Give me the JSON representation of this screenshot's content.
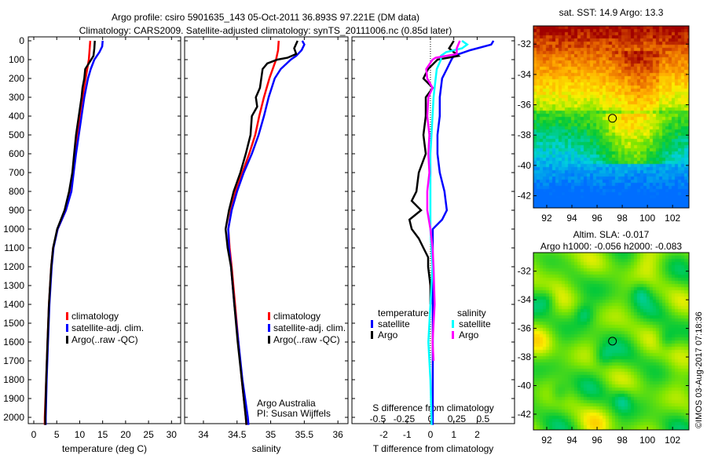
{
  "title": {
    "line1": "Argo profile: csiro 5901635_143 05-Oct-2011 36.893S 97.221E (DM data)",
    "line2": "Climatology: CARS2009. Satellite-adjusted climatology: synTS_20111006.nc (0.85d later)"
  },
  "colors": {
    "climatology": "#ff0000",
    "satellite": "#0000ff",
    "argo": "#000000",
    "sal_satellite": "#00ffff",
    "sal_argo": "#ff00ff"
  },
  "credit": "©IMOS 03-Aug-2017 07:18:36",
  "chart_data": [
    {
      "type": "line",
      "name": "temperature",
      "xlabel": "temperature (deg C)",
      "xlim": [
        -1.2,
        32
      ],
      "ylim": [
        2040,
        0
      ],
      "xticks": [
        "0",
        "5",
        "10",
        "15",
        "20",
        "25",
        "30"
      ],
      "xtick_values": [
        0,
        5,
        10,
        15,
        20,
        25,
        30
      ],
      "yticks": [
        "0",
        "100",
        "200",
        "300",
        "400",
        "500",
        "600",
        "700",
        "800",
        "900",
        "1000",
        "1100",
        "1200",
        "1300",
        "1400",
        "1500",
        "1600",
        "1700",
        "1800",
        "1900",
        "2000"
      ],
      "legend": [
        "climatology",
        "satellite-adj. clim.",
        "Argo(..raw -QC)"
      ],
      "series": [
        {
          "name": "climatology",
          "color": "#ff0000",
          "p": [
            0,
            100,
            200,
            300,
            400,
            500,
            600,
            700,
            800,
            900,
            1000,
            1100,
            1200,
            1400,
            1600,
            1800,
            2000,
            2040
          ],
          "v": [
            12.3,
            12,
            11.3,
            10.6,
            10,
            9.5,
            9,
            8.6,
            8.1,
            7,
            5.2,
            4.2,
            3.8,
            3.3,
            3,
            2.7,
            2.4,
            2.4
          ]
        },
        {
          "name": "satellite-adj. clim.",
          "color": "#0000ff",
          "p": [
            0,
            30,
            60,
            100,
            150,
            200,
            300,
            400,
            500,
            600,
            700,
            800,
            900,
            1000,
            1100,
            1200,
            1400,
            1600,
            1800,
            2000,
            2040
          ],
          "v": [
            15,
            14.9,
            14.3,
            13.2,
            12.4,
            11.8,
            11,
            10.4,
            9.8,
            9.2,
            8.7,
            8.2,
            7,
            5.2,
            4.3,
            3.9,
            3.4,
            3.1,
            2.8,
            2.6,
            2.6
          ]
        },
        {
          "name": "Argo(..raw -QC)",
          "color": "#000000",
          "p": [
            0,
            40,
            80,
            100,
            150,
            200,
            250,
            300,
            400,
            500,
            600,
            700,
            800,
            900,
            1000,
            1100,
            1200,
            1400,
            1600,
            1800,
            2000,
            2040
          ],
          "v": [
            13.3,
            13.2,
            13,
            12.5,
            11.2,
            11,
            10.6,
            10.4,
            9.8,
            9.2,
            8.8,
            8.4,
            7.7,
            6.7,
            5.1,
            4.2,
            3.8,
            3.3,
            3,
            2.7,
            2.5,
            2.5
          ]
        }
      ]
    },
    {
      "type": "line",
      "name": "salinity",
      "xlabel": "salinity",
      "xlim": [
        33.72,
        36.15
      ],
      "ylim": [
        2040,
        0
      ],
      "xticks": [
        "34",
        "34.5",
        "35",
        "35.5",
        "36"
      ],
      "xtick_values": [
        34,
        34.5,
        35,
        35.5,
        36
      ],
      "legend": [
        "climatology",
        "satellite-adj. clim.",
        "Argo(..raw -QC)"
      ],
      "annotation": [
        "Argo Australia",
        "PI: Susan Wijffels"
      ],
      "series": [
        {
          "name": "climatology",
          "color": "#ff0000",
          "p": [
            0,
            50,
            100,
            200,
            300,
            400,
            500,
            600,
            700,
            800,
            900,
            1000,
            1100,
            1200,
            1400,
            1600,
            1800,
            2000,
            2040
          ],
          "v": [
            35.12,
            35.11,
            35.08,
            34.98,
            34.9,
            34.83,
            34.77,
            34.68,
            34.58,
            34.48,
            34.41,
            34.37,
            34.39,
            34.42,
            34.47,
            34.52,
            34.57,
            34.63,
            34.64
          ]
        },
        {
          "name": "satellite-adj. clim.",
          "color": "#0000ff",
          "p": [
            0,
            20,
            50,
            80,
            100,
            150,
            200,
            300,
            400,
            500,
            600,
            700,
            800,
            900,
            1000,
            1100,
            1200,
            1400,
            1600,
            1800,
            2000,
            2040
          ],
          "v": [
            35.47,
            35.5,
            35.46,
            35.38,
            35.3,
            35.15,
            35.06,
            34.97,
            34.9,
            34.82,
            34.72,
            34.6,
            34.5,
            34.42,
            34.37,
            34.38,
            34.41,
            34.46,
            34.52,
            34.58,
            34.66,
            34.67
          ]
        },
        {
          "name": "Argo(..raw -QC)",
          "color": "#000000",
          "p": [
            0,
            40,
            70,
            90,
            100,
            120,
            150,
            200,
            250,
            300,
            350,
            400,
            500,
            600,
            700,
            800,
            900,
            1000,
            1100,
            1200,
            1400,
            1600,
            1800,
            2000,
            2040
          ],
          "v": [
            35.4,
            35.35,
            35.38,
            35.25,
            35.1,
            34.95,
            34.88,
            34.86,
            34.84,
            34.78,
            34.8,
            34.72,
            34.7,
            34.63,
            34.55,
            34.45,
            34.38,
            34.33,
            34.36,
            34.41,
            34.46,
            34.51,
            34.57,
            34.63,
            34.64
          ]
        }
      ]
    },
    {
      "type": "line",
      "name": "differences",
      "xlabel": "T difference from climatology",
      "xlabel2": "S difference from climatology",
      "xlim": [
        -3.36,
        3.6
      ],
      "ylim": [
        2040,
        0
      ],
      "xticks": [
        "-2",
        "-1",
        "0",
        "1",
        "2"
      ],
      "xtick_values": [
        -2,
        -1,
        0,
        1,
        2
      ],
      "s_xticks": [
        "-0.5",
        "-0.25",
        "0",
        "0.25",
        "0.5"
      ],
      "s_xtick_values": [
        -0.5,
        -0.25,
        0,
        0.25,
        0.5
      ],
      "legend": {
        "temperature_title": "temperature",
        "salinity_title": "salinity",
        "t_satellite": "satellite",
        "t_argo": "Argo",
        "s_satellite": "satellite",
        "s_argo": "Argo"
      },
      "series": [
        {
          "name": "T satellite",
          "color": "#0000ff",
          "units": "T",
          "p": [
            0,
            20,
            50,
            80,
            100,
            150,
            200,
            300,
            400,
            500,
            600,
            700,
            800,
            900,
            950,
            1000,
            1100,
            1200,
            1400,
            1600,
            1800,
            2000,
            2040
          ],
          "v": [
            2.7,
            2.6,
            1.7,
            1,
            0.9,
            0.7,
            0.5,
            0.4,
            0.4,
            0.3,
            0.3,
            0.4,
            0.6,
            0.7,
            0.5,
            0.1,
            0.1,
            0.1,
            0.1,
            0.1,
            0.1,
            0.1,
            0.1
          ]
        },
        {
          "name": "T argo",
          "color": "#000000",
          "units": "T",
          "p": [
            0,
            40,
            80,
            100,
            150,
            200,
            250,
            300,
            400,
            500,
            600,
            700,
            800,
            850,
            900,
            950,
            1000,
            1050,
            1100,
            1150,
            1200,
            1300,
            1400
          ],
          "v": [
            1,
            0.8,
            1.2,
            0.3,
            -0.1,
            -0.3,
            0.1,
            -0.2,
            -0.2,
            -0.3,
            -0.2,
            -0.5,
            -0.6,
            -0.8,
            -0.4,
            -0.9,
            -0.8,
            -0.5,
            -0.3,
            -0.1,
            -0.1,
            0,
            0
          ]
        },
        {
          "name": "S satellite",
          "color": "#00ffff",
          "units": "S",
          "p": [
            0,
            20,
            40,
            60,
            80,
            100,
            150,
            200,
            300,
            400,
            500,
            600,
            800,
            1000,
            1200,
            1400,
            1600,
            1800,
            2000,
            2040
          ],
          "v": [
            0.3,
            0.35,
            0.3,
            0.15,
            0.1,
            0.1,
            0.06,
            0.05,
            0.03,
            0.02,
            0.01,
            0,
            0,
            0,
            0.02,
            0,
            -0.02,
            0,
            0.01,
            0.01
          ]
        },
        {
          "name": "S argo",
          "color": "#ff00ff",
          "units": "S",
          "p": [
            0,
            40,
            70,
            90,
            100,
            150,
            200,
            250,
            300,
            400,
            500,
            600,
            700,
            800,
            900,
            1000,
            1100,
            1200,
            1400,
            1600,
            1700
          ],
          "v": [
            0.28,
            0.25,
            0.25,
            0.05,
            0.02,
            -0.04,
            -0.03,
            0.02,
            -0.02,
            -0.03,
            -0.01,
            -0.02,
            -0.01,
            -0.03,
            -0.03,
            0,
            0.02,
            0.03,
            0.04,
            0.02,
            0.03
          ]
        }
      ]
    },
    {
      "type": "heatmap",
      "name": "sst-map",
      "title": "sat. SST: 14.9 Argo: 13.3",
      "xlim": [
        90.94,
        103.3
      ],
      "ylim": [
        -42.8,
        -30.8
      ],
      "xticks": [
        "92",
        "94",
        "96",
        "98",
        "100",
        "102"
      ],
      "xtick_values": [
        92,
        94,
        96,
        98,
        100,
        102
      ],
      "yticks": [
        "-32",
        "-34",
        "-36",
        "-38",
        "-40",
        "-42"
      ],
      "ytick_values": [
        -32,
        -34,
        -36,
        -38,
        -40,
        -42
      ],
      "marker": {
        "lon": 97.221,
        "lat": -36.893
      }
    },
    {
      "type": "heatmap",
      "name": "sla-map",
      "title": "Altim. SLA: -0.017",
      "subtitle": "Argo h1000: -0.056 h2000: -0.083",
      "xlim": [
        90.94,
        103.3
      ],
      "ylim": [
        -43.1,
        -30.7
      ],
      "xticks": [
        "92",
        "94",
        "96",
        "98",
        "100",
        "102"
      ],
      "xtick_values": [
        92,
        94,
        96,
        98,
        100,
        102
      ],
      "yticks": [
        "-32",
        "-34",
        "-36",
        "-38",
        "-40",
        "-42"
      ],
      "ytick_values": [
        -32,
        -34,
        -36,
        -38,
        -40,
        -42
      ],
      "marker": {
        "lon": 97.221,
        "lat": -36.893
      }
    }
  ]
}
